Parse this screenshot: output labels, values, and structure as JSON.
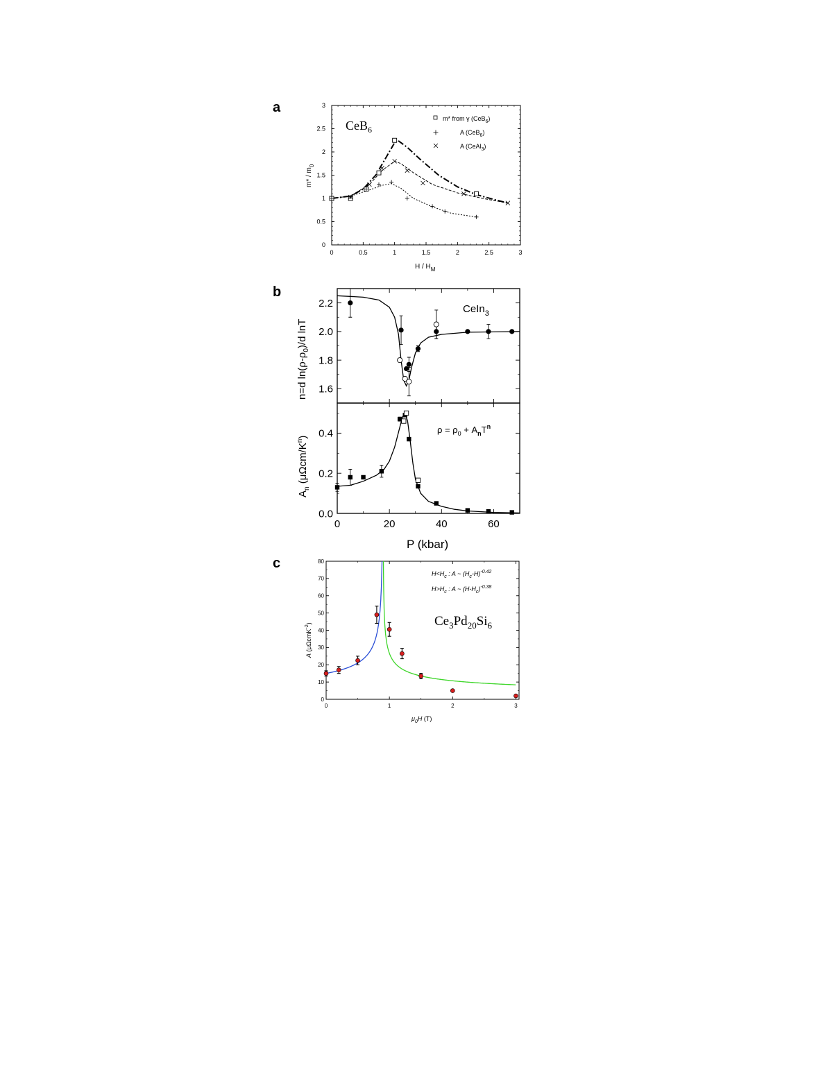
{
  "chart_data": [
    {
      "panel": "a",
      "type": "scatter",
      "inset_label": "CeB6",
      "xlabel": "H / H_M",
      "ylabel": "m* / m_0",
      "xlim": [
        0,
        3
      ],
      "ylim": [
        0,
        3
      ],
      "xticks": [
        0,
        0.5,
        1,
        1.5,
        2,
        2.5,
        3
      ],
      "yticks": [
        0,
        0.5,
        1,
        1.5,
        2,
        2.5,
        3
      ],
      "xticklabels": [
        "0",
        "0.5",
        "1",
        "1.5",
        "2",
        "2.5",
        "3"
      ],
      "yticklabels": [
        "0",
        "0.5",
        "1",
        "1.5",
        "2",
        "2.5",
        "3"
      ],
      "legend_position": "top-right",
      "series": [
        {
          "name": "m* from γ (CeB6)",
          "marker": "open-square",
          "line": "dash-dot",
          "x": [
            0,
            0.3,
            0.55,
            0.75,
            1.0,
            2.3
          ],
          "y": [
            1.0,
            1.0,
            1.2,
            1.55,
            2.25,
            1.1
          ],
          "curve_x": [
            0,
            0.3,
            0.5,
            0.7,
            0.85,
            1.0,
            1.05,
            1.2,
            1.4,
            1.7,
            2.0,
            2.3,
            2.6,
            2.8
          ],
          "curve_y": [
            1.0,
            1.05,
            1.2,
            1.5,
            1.85,
            2.2,
            2.25,
            2.1,
            1.85,
            1.5,
            1.25,
            1.08,
            0.97,
            0.9
          ]
        },
        {
          "name": "A (CeB6)",
          "marker": "plus",
          "line": "dotted",
          "x": [
            0,
            0.3,
            0.55,
            0.75,
            0.95,
            1.2,
            1.6,
            1.8,
            2.3
          ],
          "y": [
            1.0,
            1.03,
            1.2,
            1.3,
            1.35,
            1.0,
            0.83,
            0.72,
            0.6
          ],
          "curve_x": [
            0,
            0.3,
            0.6,
            0.8,
            0.95,
            1.1,
            1.3,
            1.6,
            1.9,
            2.3
          ],
          "curve_y": [
            1.0,
            1.05,
            1.18,
            1.28,
            1.32,
            1.22,
            1.0,
            0.82,
            0.68,
            0.6
          ]
        },
        {
          "name": "A (CeAl3)",
          "marker": "cross",
          "line": "dashed",
          "x": [
            0.3,
            0.6,
            0.8,
            1.0,
            1.2,
            1.45,
            2.1,
            2.8
          ],
          "y": [
            1.03,
            1.3,
            1.65,
            1.8,
            1.6,
            1.33,
            1.1,
            0.9
          ],
          "curve_x": [
            0,
            0.3,
            0.6,
            0.8,
            1.0,
            1.1,
            1.3,
            1.6,
            2.0,
            2.4,
            2.8
          ],
          "curve_y": [
            1.0,
            1.05,
            1.3,
            1.6,
            1.8,
            1.75,
            1.55,
            1.3,
            1.12,
            1.0,
            0.9
          ]
        }
      ]
    },
    {
      "panel": "b",
      "type": "scatter",
      "inset_label": "CeIn3",
      "annotation": "ρ = ρ0 + AnTn",
      "xlabel": "P (kbar)",
      "xlim": [
        0,
        70
      ],
      "xticks": [
        0,
        20,
        40,
        60
      ],
      "xticklabels": [
        "0",
        "20",
        "40",
        "60"
      ],
      "top": {
        "ylabel": "n=d ln(ρ-ρ0)/d lnT",
        "ylim": [
          1.5,
          2.3
        ],
        "yticks": [
          1.6,
          1.8,
          2.0,
          2.2
        ],
        "yticklabels": [
          "1.6",
          "1.8",
          "2.0",
          "2.2"
        ],
        "series": [
          {
            "marker": "filled-circle",
            "x": [
              5,
              24.5,
              26.5,
              27.5,
              31,
              38,
              50,
              58,
              67
            ],
            "y": [
              2.2,
              2.01,
              1.74,
              1.77,
              1.88,
              2.0,
              2.0,
              2.0,
              2.0
            ],
            "err": [
              0.1,
              0.1,
              0,
              0.05,
              0.02,
              0.05,
              0,
              0.05,
              0
            ]
          },
          {
            "marker": "open-circle",
            "x": [
              24,
              26,
              27.5,
              38
            ],
            "y": [
              1.8,
              1.67,
              1.65,
              2.05
            ],
            "err": [
              0,
              0,
              0.1,
              0.1
            ]
          }
        ],
        "curve_x": [
          0,
          10,
          16,
          20,
          22,
          23.5,
          24.5,
          25.5,
          26.5,
          27.5,
          28.5,
          30,
          32,
          35,
          40,
          50,
          70
        ],
        "curve_y": [
          2.25,
          2.24,
          2.22,
          2.17,
          2.1,
          1.98,
          1.8,
          1.66,
          1.62,
          1.66,
          1.75,
          1.85,
          1.92,
          1.96,
          1.98,
          1.995,
          2.0
        ]
      },
      "bottom": {
        "ylabel": "An (μΩcm/Kn)",
        "ylim": [
          0,
          0.55
        ],
        "yticks": [
          0.0,
          0.2,
          0.4
        ],
        "yticklabels": [
          "0.0",
          "0.2",
          "0.4"
        ],
        "series": [
          {
            "marker": "filled-square",
            "x": [
              0,
              5,
              10,
              17,
              24,
              26,
              27.5,
              31,
              38,
              50,
              58,
              67
            ],
            "y": [
              0.13,
              0.18,
              0.18,
              0.21,
              0.47,
              0.49,
              0.37,
              0.135,
              0.05,
              0.015,
              0.01,
              0.005
            ],
            "err": [
              0.02,
              0.04,
              0,
              0.03,
              0.01,
              0,
              0,
              0,
              0,
              0,
              0,
              0
            ]
          },
          {
            "marker": "open-square",
            "x": [
              25.5,
              26.5,
              31
            ],
            "y": [
              0.46,
              0.5,
              0.165
            ],
            "err": [
              0,
              0,
              0
            ]
          }
        ],
        "curve_x": [
          0,
          5,
          10,
          15,
          18,
          20,
          22,
          24,
          25,
          26,
          27,
          28,
          29,
          30,
          32,
          35,
          40,
          45,
          50,
          60,
          70
        ],
        "curve_y": [
          0.135,
          0.14,
          0.16,
          0.19,
          0.22,
          0.26,
          0.33,
          0.43,
          0.48,
          0.5,
          0.46,
          0.36,
          0.25,
          0.17,
          0.1,
          0.06,
          0.035,
          0.02,
          0.012,
          0.005,
          0.002
        ]
      }
    },
    {
      "panel": "c",
      "type": "scatter",
      "inset_label": "Ce3Pd20Si6",
      "annotations": [
        "H<Hc : A ~ (Hc-H)-0.42",
        "H>Hc : A ~ (H-Hc)-0.38"
      ],
      "xlabel": "μ0H (T)",
      "ylabel": "A (μΩcmK-2)",
      "xlim": [
        0,
        3.05
      ],
      "ylim": [
        0,
        80
      ],
      "xticks": [
        0,
        1,
        2,
        3
      ],
      "xticklabels": [
        "0",
        "1",
        "2",
        "3"
      ],
      "yticks": [
        0,
        10,
        20,
        30,
        40,
        50,
        60,
        70,
        80
      ],
      "yticklabels": [
        "0",
        "10",
        "20",
        "30",
        "40",
        "50",
        "60",
        "70",
        "80"
      ],
      "point_color": "#d81e1e",
      "series": [
        {
          "marker": "filled-circle",
          "x": [
            0,
            0.2,
            0.5,
            0.8,
            1.0,
            1.2,
            1.5,
            2.0,
            3.0
          ],
          "y": [
            15,
            17,
            22.5,
            49,
            40.5,
            26.5,
            13.5,
            5,
            2
          ],
          "err": [
            1.5,
            2,
            2.5,
            5,
            4,
            3,
            1.5,
            0,
            0
          ]
        }
      ],
      "fit_below": {
        "color": "#2b4fd6",
        "hc": 0.9,
        "exponent": -0.42
      },
      "fit_above": {
        "color": "#3fd62b",
        "hc": 0.9,
        "exponent": -0.38
      }
    }
  ]
}
